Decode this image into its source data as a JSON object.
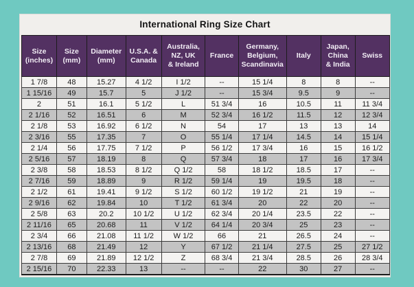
{
  "title": "International Ring Size Chart",
  "colors": {
    "background_teal": "#6FC9C1",
    "panel_background": "#F1EFEC",
    "header_purple": "#533162",
    "header_text": "#F2EDF5",
    "row_light": "#F4F3F1",
    "row_dark": "#C3C3C3",
    "border": "#1c1c1c",
    "cell_text": "#1b1b1b"
  },
  "chart_data": {
    "type": "table",
    "title": "International Ring Size Chart",
    "legend_position": "none",
    "grid": true,
    "columns": [
      "Size\n(inches)",
      "Size\n(mm)",
      "Diameter\n(mm)",
      "U.S.A. &\nCanada",
      "Australia,\nNZ, UK\n& Ireland",
      "France",
      "Germany,\nBelgium,\nScandinavia",
      "Italy",
      "Japan,\nChina\n& India",
      "Swiss"
    ],
    "rows": [
      [
        "1 7/8",
        "48",
        "15.27",
        "4 1/2",
        "I 1/2",
        "--",
        "15 1/4",
        "8",
        "8",
        "--"
      ],
      [
        "1 15/16",
        "49",
        "15.7",
        "5",
        "J 1/2",
        "--",
        "15 3/4",
        "9.5",
        "9",
        "--"
      ],
      [
        "2",
        "51",
        "16.1",
        "5 1/2",
        "L",
        "51 3/4",
        "16",
        "10.5",
        "11",
        "11 3/4"
      ],
      [
        "2 1/16",
        "52",
        "16.51",
        "6",
        "M",
        "52 3/4",
        "16 1/2",
        "11.5",
        "12",
        "12 3/4"
      ],
      [
        "2 1/8",
        "53",
        "16.92",
        "6 1/2",
        "N",
        "54",
        "17",
        "13",
        "13",
        "14"
      ],
      [
        "2 3/16",
        "55",
        "17.35",
        "7",
        "O",
        "55 1/4",
        "17 1/4",
        "14.5",
        "14",
        "15 1/4"
      ],
      [
        "2 1/4",
        "56",
        "17.75",
        "7 1/2",
        "P",
        "56 1/2",
        "17 3/4",
        "16",
        "15",
        "16 1/2"
      ],
      [
        "2 5/16",
        "57",
        "18.19",
        "8",
        "Q",
        "57 3/4",
        "18",
        "17",
        "16",
        "17 3/4"
      ],
      [
        "2 3/8",
        "58",
        "18.53",
        "8 1/2",
        "Q 1/2",
        "58",
        "18 1/2",
        "18.5",
        "17",
        "--"
      ],
      [
        "2 7/16",
        "59",
        "18.89",
        "9",
        "R 1/2",
        "59 1/4",
        "19",
        "19.5",
        "18",
        "--"
      ],
      [
        "2 1/2",
        "61",
        "19.41",
        "9 1/2",
        "S 1/2",
        "60 1/2",
        "19 1/2",
        "21",
        "19",
        "--"
      ],
      [
        "2 9/16",
        "62",
        "19.84",
        "10",
        "T 1/2",
        "61 3/4",
        "20",
        "22",
        "20",
        "--"
      ],
      [
        "2 5/8",
        "63",
        "20.2",
        "10 1/2",
        "U 1/2",
        "62 3/4",
        "20 1/4",
        "23.5",
        "22",
        "--"
      ],
      [
        "2 11/16",
        "65",
        "20.68",
        "11",
        "V 1/2",
        "64 1/4",
        "20 3/4",
        "25",
        "23",
        "--"
      ],
      [
        "2 3/4",
        "66",
        "21.08",
        "11 1/2",
        "W 1/2",
        "66",
        "21",
        "26.5",
        "24",
        "--"
      ],
      [
        "2 13/16",
        "68",
        "21.49",
        "12",
        "Y",
        "67 1/2",
        "21 1/4",
        "27.5",
        "25",
        "27 1/2"
      ],
      [
        "2 7/8",
        "69",
        "21.89",
        "12 1/2",
        "Z",
        "68 3/4",
        "21 3/4",
        "28.5",
        "26",
        "28 3/4"
      ],
      [
        "2 15/16",
        "70",
        "22.33",
        "13",
        "--",
        "--",
        "22",
        "30",
        "27",
        "--"
      ]
    ]
  }
}
